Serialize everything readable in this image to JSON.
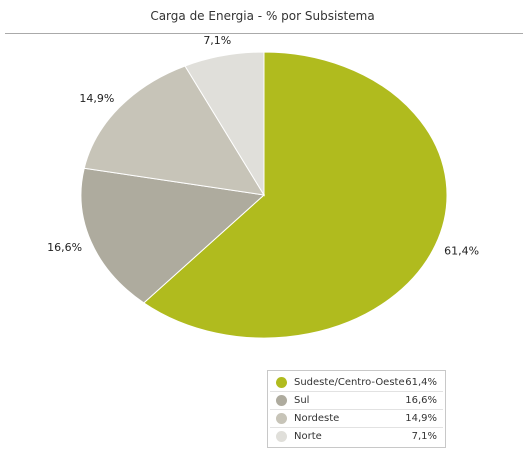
{
  "chart_data": {
    "type": "pie",
    "title": "Carga de Energia - % por Subsistema",
    "legend_position": "bottom-right",
    "slices": [
      {
        "name": "Sudeste/Centro-Oeste",
        "value": 61.4,
        "label": "61,4%",
        "color": "#b0bb1e"
      },
      {
        "name": "Sul",
        "value": 16.6,
        "label": "16,6%",
        "color": "#aeab9e"
      },
      {
        "name": "Nordeste",
        "value": 14.9,
        "label": "14,9%",
        "color": "#c7c4b8"
      },
      {
        "name": "Norte",
        "value": 7.1,
        "label": "7,1%",
        "color": "#e0dfda"
      }
    ]
  }
}
